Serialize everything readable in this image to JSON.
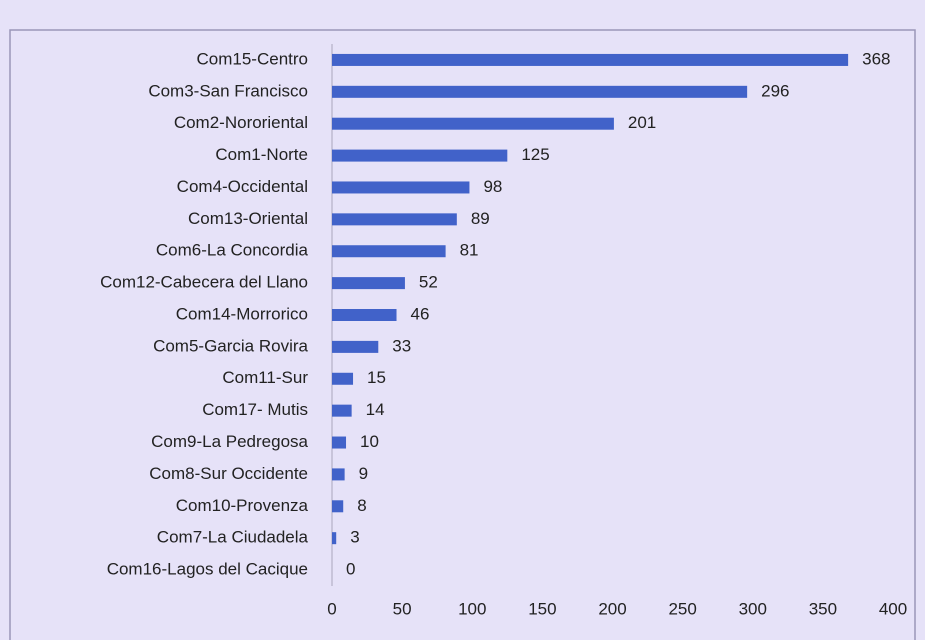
{
  "chart_data": {
    "type": "bar",
    "orientation": "horizontal",
    "categories": [
      "Com15-Centro",
      "Com3-San Francisco",
      "Com2-Nororiental",
      "Com1-Norte",
      "Com4-Occidental",
      "Com13-Oriental",
      "Com6-La Concordia",
      "Com12-Cabecera del Llano",
      "Com14-Morrorico",
      "Com5-Garcia Rovira",
      "Com11-Sur",
      "Com17- Mutis",
      "Com9-La Pedregosa",
      "Com8-Sur Occidente",
      "Com10-Provenza",
      "Com7-La Ciudadela",
      "Com16-Lagos del Cacique"
    ],
    "values": [
      368,
      296,
      201,
      125,
      98,
      89,
      81,
      52,
      46,
      33,
      15,
      14,
      10,
      9,
      8,
      3,
      0
    ],
    "color": "#4162c9",
    "xlim": [
      0,
      400
    ],
    "xticks": [
      0,
      50,
      100,
      150,
      200,
      250,
      300,
      350,
      400
    ],
    "grid": false
  }
}
